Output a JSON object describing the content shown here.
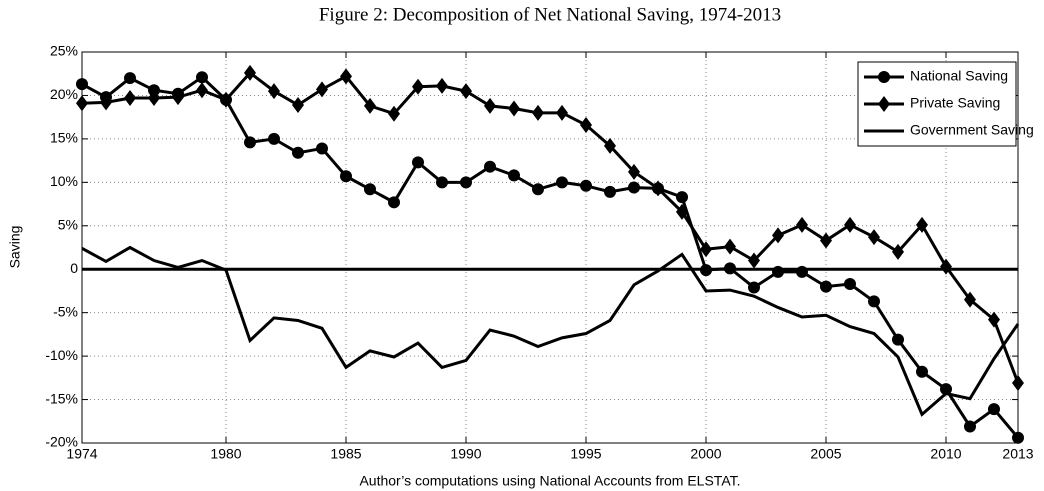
{
  "chart_data": {
    "type": "line",
    "title": "Figure 2: Decomposition of Net National Saving, 1974-2013",
    "y_label": "Saving",
    "x_label": "Author’s computations using National Accounts from ELSTAT.",
    "x": [
      1974,
      1975,
      1976,
      1977,
      1978,
      1979,
      1980,
      1981,
      1982,
      1983,
      1984,
      1985,
      1986,
      1987,
      1988,
      1989,
      1990,
      1991,
      1992,
      1993,
      1994,
      1995,
      1996,
      1997,
      1998,
      1999,
      2000,
      2001,
      2002,
      2003,
      2004,
      2005,
      2006,
      2007,
      2008,
      2009,
      2010,
      2011,
      2012,
      2013
    ],
    "series": [
      {
        "name": "National Saving",
        "color": "#000000",
        "marker": "circle",
        "values": [
          21.3,
          19.8,
          22.0,
          20.6,
          20.2,
          22.1,
          19.5,
          14.6,
          15.0,
          13.4,
          13.9,
          10.7,
          9.2,
          7.7,
          12.3,
          10.0,
          10.0,
          11.8,
          10.8,
          9.2,
          10.0,
          9.6,
          8.9,
          9.4,
          9.3,
          8.3,
          -0.1,
          0.1,
          -2.1,
          -0.3,
          -0.3,
          -2.0,
          -1.7,
          -3.7,
          -8.1,
          -11.8,
          -13.8,
          -18.1,
          -16.1,
          -19.4
        ]
      },
      {
        "name": "Private Saving",
        "color": "#000000",
        "marker": "diamond",
        "values": [
          19.1,
          19.2,
          19.7,
          19.7,
          19.8,
          20.6,
          19.5,
          22.6,
          20.5,
          18.9,
          20.7,
          22.2,
          18.8,
          17.9,
          21.0,
          21.1,
          20.5,
          18.8,
          18.5,
          18.0,
          18.0,
          16.6,
          14.2,
          11.2,
          9.3,
          6.6,
          2.3,
          2.6,
          1.0,
          3.9,
          5.1,
          3.3,
          5.1,
          3.7,
          2.0,
          5.1,
          0.3,
          -3.5,
          -5.8,
          -13.1
        ]
      },
      {
        "name": "Government Saving",
        "color": "#000000",
        "marker": "none",
        "values": [
          2.4,
          0.9,
          2.5,
          1.0,
          0.2,
          1.0,
          -0.1,
          -8.2,
          -5.6,
          -5.9,
          -6.8,
          -11.3,
          -9.4,
          -10.1,
          -8.5,
          -11.3,
          -10.5,
          -7.0,
          -7.7,
          -8.9,
          -7.9,
          -7.4,
          -5.9,
          -1.8,
          -0.2,
          1.7,
          -2.5,
          -2.4,
          -3.1,
          -4.4,
          -5.5,
          -5.3,
          -6.6,
          -7.4,
          -10.1,
          -16.7,
          -14.3,
          -14.9,
          -10.3,
          -6.3
        ]
      }
    ],
    "xlim": [
      1974,
      2013
    ],
    "xticks": [
      1974,
      1980,
      1985,
      1990,
      1995,
      2000,
      2005,
      2010,
      2013
    ],
    "ylim": [
      -20,
      25
    ],
    "yticks": [
      {
        "value": -20,
        "label": "-20%"
      },
      {
        "value": -15,
        "label": "-15%"
      },
      {
        "value": -10,
        "label": "-10%"
      },
      {
        "value": -5,
        "label": "-5%"
      },
      0,
      {
        "value": 5,
        "label": "5%"
      },
      {
        "value": 10,
        "label": "10%"
      },
      {
        "value": 15,
        "label": "15%"
      },
      {
        "value": 20,
        "label": "20%"
      },
      {
        "value": 25,
        "label": "25%"
      }
    ],
    "grid": true,
    "legend": "upper right"
  }
}
